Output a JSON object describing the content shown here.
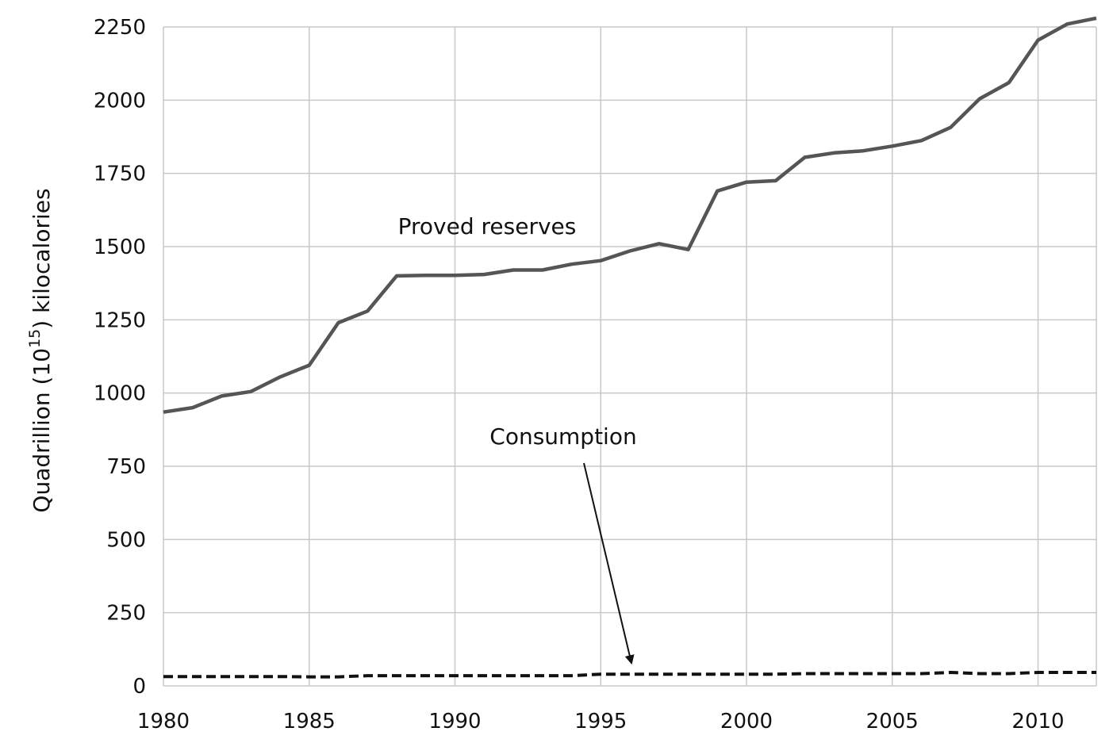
{
  "chart_data": {
    "type": "line",
    "ylabel_text": "Quadrillion (10",
    "ylabel_sup": "15",
    "ylabel_tail": ") kilocalories",
    "xlabel": "",
    "title": "",
    "x": [
      1980,
      1981,
      1982,
      1983,
      1984,
      1985,
      1986,
      1987,
      1988,
      1989,
      1990,
      1991,
      1992,
      1993,
      1994,
      1995,
      1996,
      1997,
      1998,
      1999,
      2000,
      2001,
      2002,
      2003,
      2004,
      2005,
      2006,
      2007,
      2008,
      2009,
      2010,
      2011,
      2012
    ],
    "xlim": [
      1980,
      2012
    ],
    "ylim": [
      0,
      2250
    ],
    "xticks": [
      1980,
      1985,
      1990,
      1995,
      2000,
      2005,
      2010
    ],
    "yticks": [
      0,
      250,
      500,
      750,
      1000,
      1250,
      1500,
      1750,
      2000,
      2250
    ],
    "grid": true,
    "series": [
      {
        "name": "Proved reserves",
        "style": "solid",
        "color": "#555555",
        "values": [
          935,
          950,
          990,
          1005,
          1055,
          1095,
          1240,
          1280,
          1400,
          1402,
          1402,
          1405,
          1420,
          1420,
          1440,
          1452,
          1485,
          1510,
          1490,
          1690,
          1720,
          1725,
          1805,
          1820,
          1827,
          1843,
          1862,
          1907,
          2005,
          2060,
          2205,
          2260,
          2280
        ]
      },
      {
        "name": "Consumption",
        "style": "dashed",
        "color": "#111111",
        "values": [
          32,
          32,
          32,
          32,
          32,
          31,
          31,
          35,
          35,
          35,
          35,
          35,
          35,
          35,
          35,
          40,
          40,
          40,
          40,
          40,
          40,
          40,
          42,
          42,
          42,
          42,
          42,
          46,
          42,
          42,
          46,
          46,
          46
        ]
      }
    ],
    "annotations": [
      {
        "text": "Proved reserves"
      },
      {
        "text": "Consumption",
        "arrow_to": {
          "x": 1996,
          "y": 40
        }
      }
    ]
  }
}
